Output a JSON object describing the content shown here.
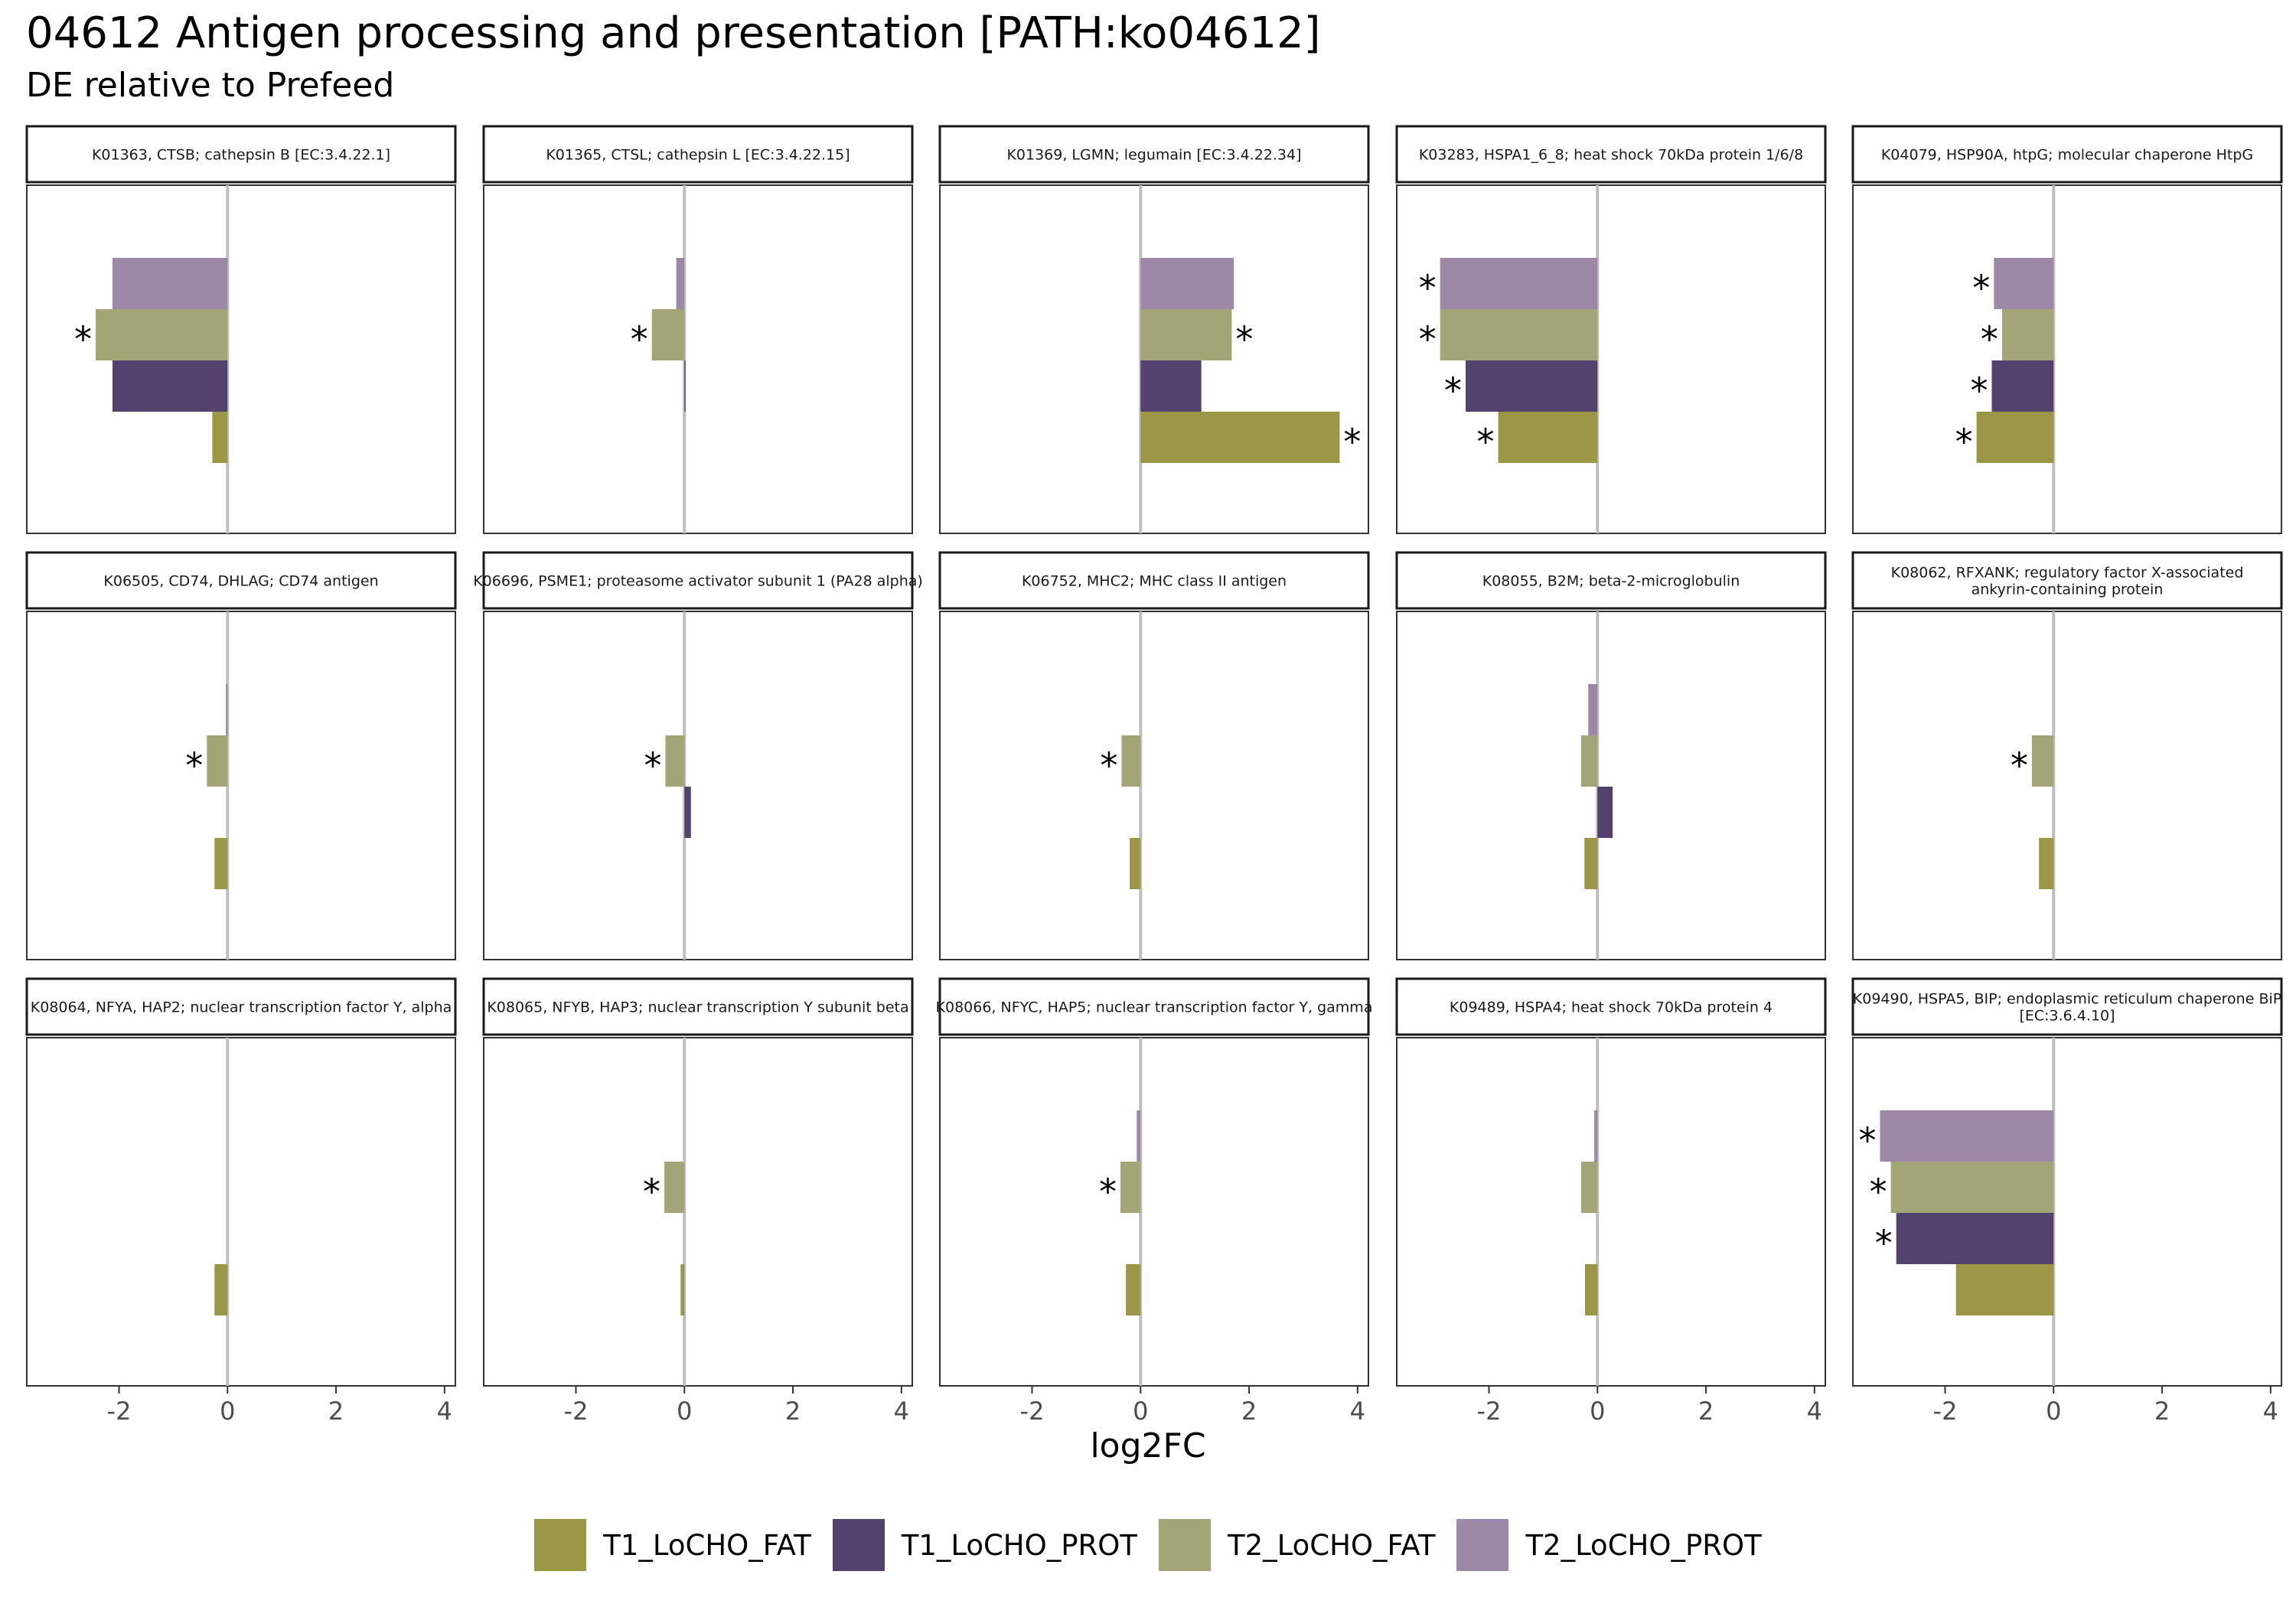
{
  "title": "04612 Antigen processing and presentation [PATH:ko04612]",
  "subtitle": "DE relative to Prefeed",
  "colors": {
    "T1_LoCHO_FAT": "#9c9747",
    "T1_LoCHO_PROT": "#53426d",
    "T2_LoCHO_FAT": "#a3a577",
    "T2_LoCHO_PROT": "#9d89a7",
    "zero_line": "#bebebe",
    "panel_border": "#333333",
    "strip_border": "#1a1a1a",
    "axis_text": "#4d4d4d"
  },
  "chart_data": {
    "type": "bar",
    "orientation": "horizontal",
    "facet_layout": {
      "rows": 3,
      "cols": 5
    },
    "xlabel": "log2FC",
    "xlim": [
      -3.7,
      4.2
    ],
    "xticks": [
      -2,
      0,
      2,
      4
    ],
    "xtick_labels": [
      "-2",
      "0",
      "2",
      "4"
    ],
    "grid": false,
    "legend_position": "bottom",
    "series_order_bottom_to_top": [
      "T1_LoCHO_FAT",
      "T1_LoCHO_PROT",
      "T2_LoCHO_FAT",
      "T2_LoCHO_PROT"
    ],
    "legend": [
      "T1_LoCHO_FAT",
      "T1_LoCHO_PROT",
      "T2_LoCHO_FAT",
      "T2_LoCHO_PROT"
    ],
    "significance_marker": "*",
    "facets": [
      {
        "label": "K01363, CTSB; cathepsin B [EC:3.4.22.1]",
        "values": {
          "T1_LoCHO_FAT": -0.28,
          "T1_LoCHO_PROT": -2.12,
          "T2_LoCHO_FAT": -2.43,
          "T2_LoCHO_PROT": -2.12
        },
        "significant": [
          "T2_LoCHO_FAT"
        ]
      },
      {
        "label": "K01365, CTSL; cathepsin L [EC:3.4.22.15]",
        "values": {
          "T1_LoCHO_FAT": 0.0,
          "T1_LoCHO_PROT": 0.02,
          "T2_LoCHO_FAT": -0.6,
          "T2_LoCHO_PROT": -0.15
        },
        "significant": [
          "T2_LoCHO_FAT"
        ]
      },
      {
        "label": "K01369, LGMN; legumain [EC:3.4.22.34]",
        "values": {
          "T1_LoCHO_FAT": 3.67,
          "T1_LoCHO_PROT": 1.12,
          "T2_LoCHO_FAT": 1.68,
          "T2_LoCHO_PROT": 1.72
        },
        "significant": [
          "T1_LoCHO_FAT",
          "T2_LoCHO_FAT"
        ]
      },
      {
        "label": "K03283, HSPA1_6_8; heat shock 70kDa protein 1/6/8",
        "values": {
          "T1_LoCHO_FAT": -1.83,
          "T1_LoCHO_PROT": -2.43,
          "T2_LoCHO_FAT": -2.9,
          "T2_LoCHO_PROT": -2.9
        },
        "significant": [
          "T1_LoCHO_FAT",
          "T1_LoCHO_PROT",
          "T2_LoCHO_FAT",
          "T2_LoCHO_PROT"
        ]
      },
      {
        "label": "K04079, HSP90A, htpG; molecular chaperone HtpG",
        "values": {
          "T1_LoCHO_FAT": -1.42,
          "T1_LoCHO_PROT": -1.14,
          "T2_LoCHO_FAT": -0.95,
          "T2_LoCHO_PROT": -1.1
        },
        "significant": [
          "T1_LoCHO_FAT",
          "T1_LoCHO_PROT",
          "T2_LoCHO_FAT",
          "T2_LoCHO_PROT"
        ]
      },
      {
        "label": "K06505, CD74, DHLAG; CD74 antigen",
        "values": {
          "T1_LoCHO_FAT": -0.24,
          "T1_LoCHO_PROT": 0.0,
          "T2_LoCHO_FAT": -0.38,
          "T2_LoCHO_PROT": -0.03
        },
        "significant": [
          "T2_LoCHO_FAT"
        ]
      },
      {
        "label": "K06696, PSME1; proteasome activator subunit 1 (PA28 alpha)",
        "values": {
          "T1_LoCHO_FAT": 0.0,
          "T1_LoCHO_PROT": 0.12,
          "T2_LoCHO_FAT": -0.35,
          "T2_LoCHO_PROT": 0.0
        },
        "significant": [
          "T2_LoCHO_FAT"
        ]
      },
      {
        "label": "K06752, MHC2; MHC class II antigen",
        "values": {
          "T1_LoCHO_FAT": -0.2,
          "T1_LoCHO_PROT": 0.0,
          "T2_LoCHO_FAT": -0.35,
          "T2_LoCHO_PROT": 0.0
        },
        "significant": [
          "T2_LoCHO_FAT"
        ]
      },
      {
        "label": "K08055, B2M; beta-2-microglobulin",
        "values": {
          "T1_LoCHO_FAT": -0.24,
          "T1_LoCHO_PROT": 0.28,
          "T2_LoCHO_FAT": -0.3,
          "T2_LoCHO_PROT": -0.17
        },
        "significant": []
      },
      {
        "label": "K08062, RFXANK; regulatory factor X-associated ankyrin-containing protein",
        "values": {
          "T1_LoCHO_FAT": -0.27,
          "T1_LoCHO_PROT": 0.0,
          "T2_LoCHO_FAT": -0.4,
          "T2_LoCHO_PROT": 0.0
        },
        "significant": [
          "T2_LoCHO_FAT"
        ]
      },
      {
        "label": "K08064, NFYA, HAP2; nuclear transcription factor Y, alpha",
        "values": {
          "T1_LoCHO_FAT": -0.24,
          "T1_LoCHO_PROT": 0.0,
          "T2_LoCHO_FAT": 0.0,
          "T2_LoCHO_PROT": 0.0
        },
        "significant": []
      },
      {
        "label": "K08065, NFYB, HAP3; nuclear transcription Y subunit beta",
        "values": {
          "T1_LoCHO_FAT": -0.07,
          "T1_LoCHO_PROT": 0.0,
          "T2_LoCHO_FAT": -0.37,
          "T2_LoCHO_PROT": 0.0
        },
        "significant": [
          "T2_LoCHO_FAT"
        ]
      },
      {
        "label": "K08066, NFYC, HAP5; nuclear transcription factor Y, gamma",
        "values": {
          "T1_LoCHO_FAT": -0.27,
          "T1_LoCHO_PROT": 0.0,
          "T2_LoCHO_FAT": -0.37,
          "T2_LoCHO_PROT": -0.07
        },
        "significant": [
          "T2_LoCHO_FAT"
        ]
      },
      {
        "label": "K09489, HSPA4; heat shock 70kDa protein 4",
        "values": {
          "T1_LoCHO_FAT": -0.23,
          "T1_LoCHO_PROT": 0.0,
          "T2_LoCHO_FAT": -0.3,
          "T2_LoCHO_PROT": -0.06
        },
        "significant": []
      },
      {
        "label": "K09490, HSPA5, BIP; endoplasmic reticulum chaperone BiP [EC:3.6.4.10]",
        "values": {
          "T1_LoCHO_FAT": -1.8,
          "T1_LoCHO_PROT": -2.9,
          "T2_LoCHO_FAT": -3.0,
          "T2_LoCHO_PROT": -3.2
        },
        "significant": [
          "T1_LoCHO_PROT",
          "T2_LoCHO_FAT",
          "T2_LoCHO_PROT"
        ]
      }
    ]
  }
}
